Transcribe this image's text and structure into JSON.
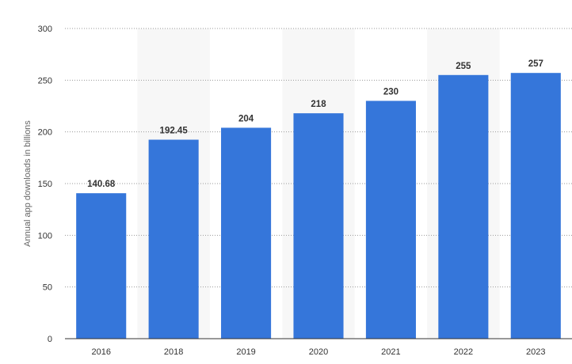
{
  "chart_data": {
    "type": "bar",
    "ylabel": "Annual app downloads in billions",
    "ylim": [
      0,
      300
    ],
    "y_ticks": [
      "0",
      "50",
      "100",
      "150",
      "200",
      "250",
      "300"
    ],
    "grid": true,
    "categories": [
      "2016",
      "2018",
      "2019",
      "2020",
      "2021",
      "2022",
      "2023"
    ],
    "values": [
      140.68,
      192.45,
      204,
      218,
      230,
      255,
      257
    ],
    "data_labels": [
      "140.68",
      "192.45",
      "204",
      "218",
      "230",
      "255",
      "257"
    ],
    "colors": {
      "bar": "#3576da",
      "band": "#f7f7f7"
    }
  }
}
